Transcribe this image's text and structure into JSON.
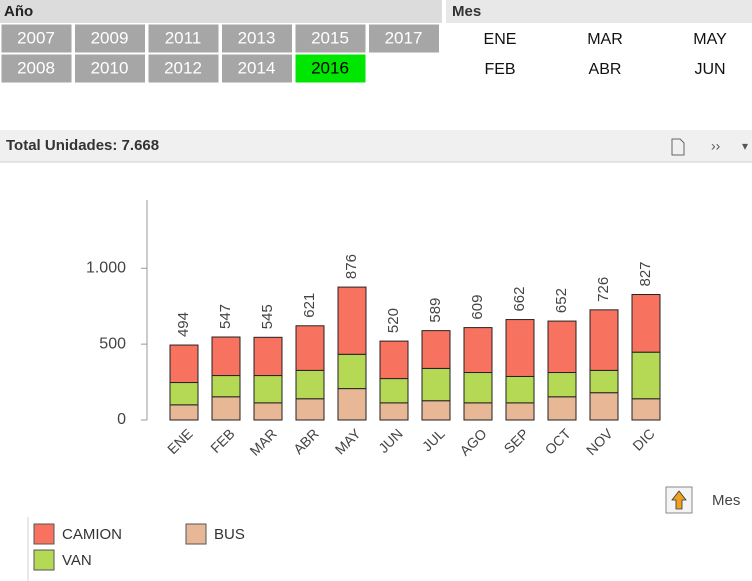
{
  "year_filter": {
    "title": "Año",
    "items": [
      "2007",
      "2008",
      "2009",
      "2010",
      "2011",
      "2012",
      "2013",
      "2014",
      "2015",
      "2016",
      "2017"
    ],
    "selected": "2016"
  },
  "month_filter": {
    "title": "Mes",
    "items": [
      "ENE",
      "FEB",
      "MAR",
      "ABR",
      "MAY",
      "JUN"
    ]
  },
  "chart_data": {
    "type": "bar",
    "stacked": true,
    "title": "Total Unidades: 7.668",
    "categories": [
      "ENE",
      "FEB",
      "MAR",
      "ABR",
      "MAY",
      "JUN",
      "JUL",
      "AGO",
      "SEP",
      "OCT",
      "NOV",
      "DIC"
    ],
    "series": [
      {
        "name": "CAMION",
        "color": "#f7735f",
        "values": [
          247,
          254,
          252,
          294,
          443,
          247,
          249,
          296,
          375,
          339,
          399,
          380
        ]
      },
      {
        "name": "VAN",
        "color": "#b5d955",
        "values": [
          147,
          140,
          180,
          187,
          226,
          160,
          213,
          200,
          174,
          160,
          147,
          307
        ]
      },
      {
        "name": "BUS",
        "color": "#e8b896",
        "values": [
          100,
          153,
          113,
          140,
          207,
          113,
          127,
          113,
          113,
          153,
          180,
          140
        ]
      }
    ],
    "totals": [
      494,
      547,
      545,
      621,
      876,
      520,
      589,
      609,
      662,
      652,
      726,
      827
    ],
    "ylim": [
      0,
      1450
    ],
    "yticks": [
      0,
      500,
      {
        "value": 1000,
        "label": "1.000"
      }
    ],
    "grid": false,
    "drill_label": "Mes"
  }
}
